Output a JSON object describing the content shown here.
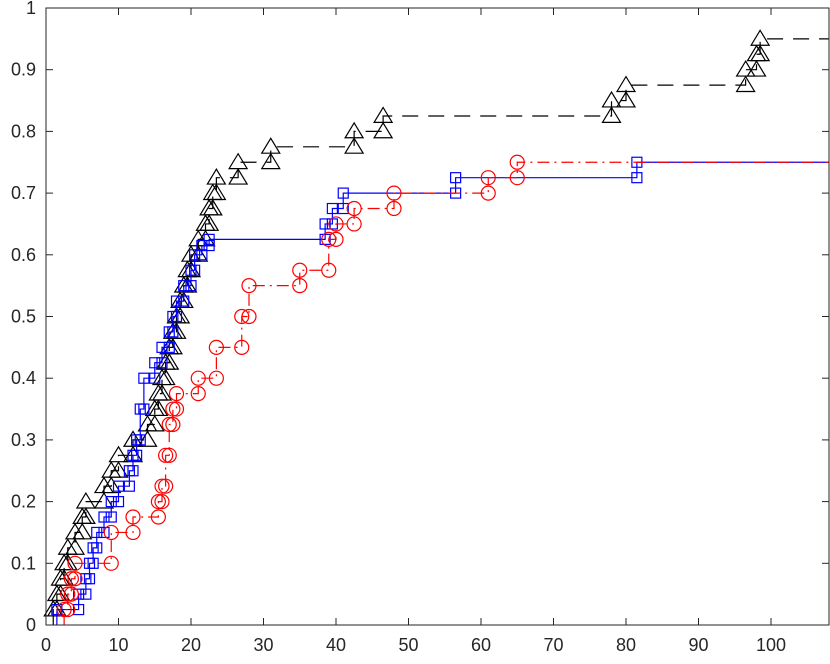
{
  "chart_data": {
    "type": "line",
    "title": "",
    "xlabel": "",
    "ylabel": "",
    "xlim": [
      0,
      108
    ],
    "ylim": [
      0,
      1
    ],
    "grid": false,
    "x_ticks": [
      "0",
      "10",
      "20",
      "30",
      "40",
      "50",
      "60",
      "70",
      "80",
      "90",
      "100"
    ],
    "y_ticks": [
      "0",
      "0.1",
      "0.2",
      "0.3",
      "0.4",
      "0.5",
      "0.6",
      "0.7",
      "0.8",
      "0.9",
      "1"
    ],
    "series": [
      {
        "color": "#000000",
        "line_style": "dashed",
        "marker": "triangle",
        "step": true,
        "x": [
          1.0,
          1.5,
          2.0,
          2.5,
          3.0,
          4.0,
          5.0,
          5.5,
          8.0,
          9.0,
          10.0,
          12.0,
          14.0,
          15.0,
          15.5,
          16.0,
          16.5,
          17.0,
          17.5,
          18.0,
          18.5,
          19.0,
          19.5,
          20.0,
          21.0,
          22.0,
          22.5,
          23.0,
          23.5,
          26.5,
          31.0,
          42.5,
          46.5,
          78.0,
          80.0,
          96.5,
          98.0,
          98.5
        ],
        "y": [
          0.025,
          0.05,
          0.075,
          0.1,
          0.125,
          0.15,
          0.175,
          0.2,
          0.225,
          0.25,
          0.275,
          0.3,
          0.325,
          0.35,
          0.375,
          0.4,
          0.425,
          0.45,
          0.475,
          0.5,
          0.525,
          0.55,
          0.575,
          0.6,
          0.625,
          0.65,
          0.675,
          0.7,
          0.725,
          0.75,
          0.775,
          0.8,
          0.825,
          0.85,
          0.875,
          0.9,
          0.925,
          0.95
        ],
        "end_x": 108
      },
      {
        "color": "#0000ff",
        "line_style": "solid",
        "marker": "square",
        "step": true,
        "x": [
          1.5,
          4.5,
          5.5,
          6.0,
          6.5,
          7.0,
          8.0,
          9.0,
          10.0,
          11.5,
          12.0,
          12.5,
          13.0,
          13.5,
          15.0,
          16.0,
          17.0,
          17.5,
          18.0,
          19.0,
          20.0,
          20.5,
          21.5,
          22.5,
          38.5,
          39.5,
          41.0,
          56.5,
          81.5
        ],
        "y": [
          0.025,
          0.05,
          0.075,
          0.1,
          0.125,
          0.15,
          0.175,
          0.2,
          0.225,
          0.25,
          0.275,
          0.3,
          0.35,
          0.4,
          0.425,
          0.45,
          0.475,
          0.5,
          0.525,
          0.55,
          0.575,
          0.6,
          0.615,
          0.625,
          0.65,
          0.675,
          0.7,
          0.725,
          0.75
        ],
        "end_x": 108
      },
      {
        "color": "#ff0000",
        "line_style": "dashdot",
        "marker": "circle",
        "step": true,
        "x": [
          2.5,
          3.0,
          3.5,
          4.0,
          9.0,
          12.0,
          15.5,
          16.0,
          16.5,
          17.0,
          17.5,
          18.0,
          21.0,
          23.5,
          27.0,
          28.0,
          35.0,
          39.0,
          40.0,
          42.5,
          48.0,
          61.0,
          65.0
        ],
        "y": [
          0.025,
          0.05,
          0.075,
          0.1,
          0.15,
          0.175,
          0.2,
          0.225,
          0.275,
          0.325,
          0.35,
          0.375,
          0.4,
          0.45,
          0.5,
          0.55,
          0.575,
          0.625,
          0.65,
          0.675,
          0.7,
          0.725,
          0.75
        ],
        "end_x": 108
      }
    ]
  }
}
